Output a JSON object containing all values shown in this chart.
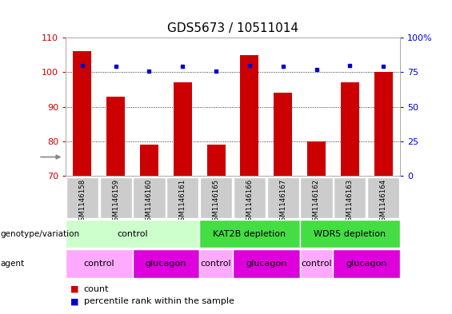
{
  "title": "GDS5673 / 10511014",
  "samples": [
    "GSM1146158",
    "GSM1146159",
    "GSM1146160",
    "GSM1146161",
    "GSM1146165",
    "GSM1146166",
    "GSM1146167",
    "GSM1146162",
    "GSM1146163",
    "GSM1146164"
  ],
  "counts": [
    106,
    93,
    79,
    97,
    79,
    105,
    94,
    80,
    97,
    100
  ],
  "percentiles": [
    80,
    79,
    76,
    79,
    76,
    80,
    79,
    77,
    80,
    79
  ],
  "ylim": [
    70,
    110
  ],
  "y2lim": [
    0,
    100
  ],
  "y_ticks": [
    70,
    80,
    90,
    100,
    110
  ],
  "y2_ticks": [
    0,
    25,
    50,
    75,
    100
  ],
  "bar_color": "#cc0000",
  "percentile_color": "#0000cc",
  "title_fontsize": 11,
  "genotype_groups": [
    {
      "label": "control",
      "start": 0,
      "end": 4,
      "color": "#ccffcc"
    },
    {
      "label": "KAT2B depletion",
      "start": 4,
      "end": 7,
      "color": "#44dd44"
    },
    {
      "label": "WDR5 depletion",
      "start": 7,
      "end": 10,
      "color": "#44dd44"
    }
  ],
  "agent_groups": [
    {
      "label": "control",
      "start": 0,
      "end": 2,
      "color": "#ffaaff"
    },
    {
      "label": "glucagon",
      "start": 2,
      "end": 4,
      "color": "#dd00dd"
    },
    {
      "label": "control",
      "start": 4,
      "end": 5,
      "color": "#ffaaff"
    },
    {
      "label": "glucagon",
      "start": 5,
      "end": 7,
      "color": "#dd00dd"
    },
    {
      "label": "control",
      "start": 7,
      "end": 8,
      "color": "#ffaaff"
    },
    {
      "label": "glucagon",
      "start": 8,
      "end": 10,
      "color": "#dd00dd"
    }
  ],
  "bar_width": 0.55,
  "tick_box_color": "#cccccc",
  "left_label_color": "#cc0000",
  "right_label_color": "#0000cc",
  "bg_color": "#ffffff"
}
